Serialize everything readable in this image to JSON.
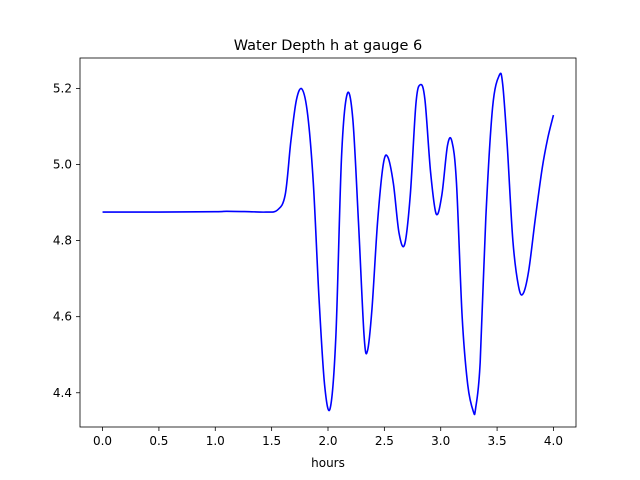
{
  "chart_data": {
    "type": "line",
    "title": "Water Depth h at gauge 6",
    "xlabel": "hours",
    "ylabel": "",
    "xlim": [
      -0.2,
      4.2
    ],
    "ylim": [
      4.31,
      5.28
    ],
    "xticks": [
      0.0,
      0.5,
      1.0,
      1.5,
      2.0,
      2.5,
      3.0,
      3.5,
      4.0
    ],
    "xtick_labels": [
      "0.0",
      "0.5",
      "1.0",
      "1.5",
      "2.0",
      "2.5",
      "3.0",
      "3.5",
      "4.0"
    ],
    "yticks": [
      4.4,
      4.6,
      4.8,
      5.0,
      5.2
    ],
    "ytick_labels": [
      "4.4",
      "4.6",
      "4.8",
      "5.0",
      "5.2"
    ],
    "grid": false,
    "series": [
      {
        "color": "#0000ff",
        "x": [
          0.0,
          0.5,
          1.0,
          1.1,
          1.3,
          1.45,
          1.55,
          1.62,
          1.67,
          1.72,
          1.77,
          1.82,
          1.87,
          1.92,
          1.97,
          2.02,
          2.07,
          2.12,
          2.17,
          2.22,
          2.27,
          2.32,
          2.35,
          2.39,
          2.44,
          2.49,
          2.53,
          2.58,
          2.63,
          2.68,
          2.73,
          2.78,
          2.82,
          2.86,
          2.91,
          2.96,
          3.01,
          3.06,
          3.1,
          3.14,
          3.19,
          3.24,
          3.29,
          3.31,
          3.35,
          3.4,
          3.46,
          3.52,
          3.55,
          3.59,
          3.64,
          3.69,
          3.73,
          3.78,
          3.84,
          3.9,
          3.95,
          4.0
        ],
        "y": [
          4.875,
          4.875,
          4.876,
          4.877,
          4.876,
          4.875,
          4.88,
          4.92,
          5.06,
          5.17,
          5.198,
          5.13,
          4.95,
          4.65,
          4.42,
          4.36,
          4.55,
          5.02,
          5.185,
          5.12,
          4.85,
          4.55,
          4.51,
          4.62,
          4.85,
          5.0,
          5.02,
          4.95,
          4.82,
          4.79,
          4.92,
          5.16,
          5.21,
          5.17,
          4.98,
          4.87,
          4.92,
          5.05,
          5.06,
          4.95,
          4.6,
          4.42,
          4.35,
          4.36,
          4.48,
          4.86,
          5.15,
          5.235,
          5.21,
          5.05,
          4.8,
          4.68,
          4.66,
          4.72,
          4.86,
          4.99,
          5.07,
          5.13
        ]
      }
    ]
  }
}
